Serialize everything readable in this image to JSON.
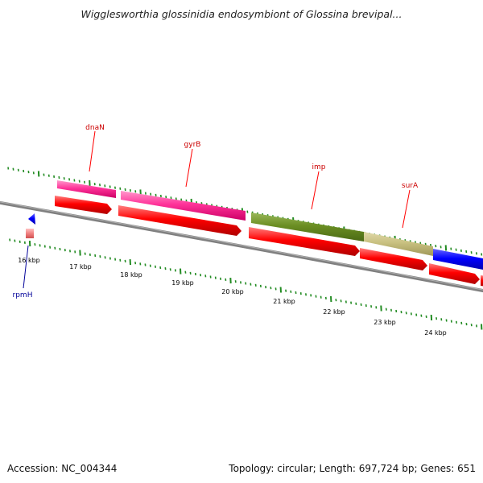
{
  "title": "Wigglesworthia glossinidia endosymbiont of Glossina brevipal...",
  "footer": {
    "accession": "Accession: NC_004344",
    "summary": "Topology: circular; Length: 697,724 bp; Genes: 651"
  },
  "colors": {
    "background": "#ffffff",
    "backbone": "#808080",
    "tick": "#228b22",
    "cds_forward": "#ff0000",
    "label_red": "#cc0000",
    "label_blue": "#000099",
    "feature_magenta": "#ff3399",
    "feature_olive": "#6b8e23",
    "feature_khaki": "#c8c080",
    "feature_blue": "#0000ff",
    "feature_pink": "#f08080"
  },
  "scale": {
    "unit": "kbp",
    "labels": [
      "16 kbp",
      "17 kbp",
      "18 kbp",
      "19 kbp",
      "20 kbp",
      "21 kbp",
      "22 kbp",
      "23 kbp",
      "24 kbp"
    ]
  },
  "gene_labels": [
    {
      "name": "dnaN",
      "color": "#cc0000"
    },
    {
      "name": "gyrB",
      "color": "#cc0000"
    },
    {
      "name": "imp",
      "color": "#cc0000"
    },
    {
      "name": "surA",
      "color": "#cc0000"
    },
    {
      "name": "rpmH",
      "color": "#000099"
    }
  ]
}
